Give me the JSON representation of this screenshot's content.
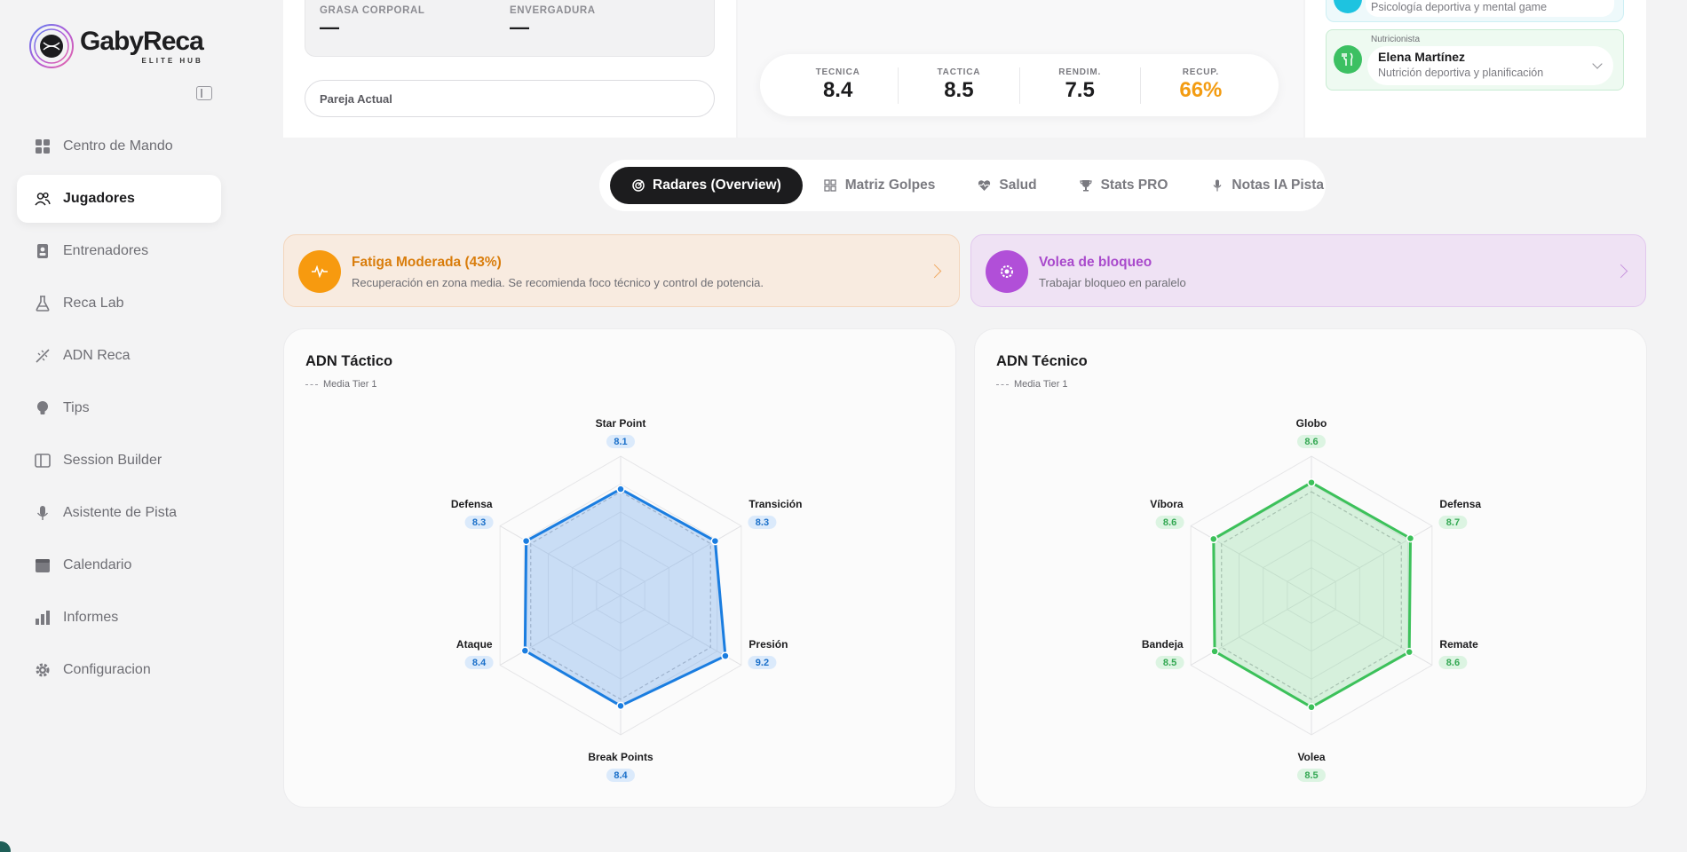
{
  "brand": {
    "name": "GabyReca",
    "tagline": "ELITE HUB"
  },
  "sidebar": {
    "items": [
      {
        "label": "Centro de Mando",
        "icon": "dashboard-icon"
      },
      {
        "label": "Jugadores",
        "icon": "users-icon",
        "active": true
      },
      {
        "label": "Entrenadores",
        "icon": "badge-icon"
      },
      {
        "label": "Reca Lab",
        "icon": "flask-icon"
      },
      {
        "label": "ADN Reca",
        "icon": "dna-icon"
      },
      {
        "label": "Tips",
        "icon": "lightbulb-icon"
      },
      {
        "label": "Session Builder",
        "icon": "layout-icon"
      },
      {
        "label": "Asistente de Pista",
        "icon": "microphone-icon"
      },
      {
        "label": "Calendario",
        "icon": "calendar-icon"
      },
      {
        "label": "Informes",
        "icon": "bar-chart-icon"
      },
      {
        "label": "Configuracion",
        "icon": "gear-icon"
      }
    ]
  },
  "body_stats": [
    {
      "label": "GRASA CORPORAL",
      "value": "—"
    },
    {
      "label": "ENVERGADURA",
      "value": "—"
    }
  ],
  "pair_field": {
    "label": "Pareja Actual"
  },
  "scores": [
    {
      "label": "TECNICA",
      "value": "8.4"
    },
    {
      "label": "TACTICA",
      "value": "8.5"
    },
    {
      "label": "RENDIM.",
      "value": "7.5"
    },
    {
      "label": "RECUP.",
      "value": "66%",
      "highlight": "#f39c12"
    }
  ],
  "staff": {
    "top_card_desc": "Psicología deportiva y mental game",
    "nutritionist": {
      "role": "Nutricionista",
      "name": "Elena Martínez",
      "desc": "Nutrición deportiva y planificación"
    }
  },
  "tabs": [
    {
      "label": "Radares (Overview)",
      "icon": "radar-icon",
      "active": true
    },
    {
      "label": "Matriz Golpes",
      "icon": "grid-icon"
    },
    {
      "label": "Salud",
      "icon": "heart-pulse-icon"
    },
    {
      "label": "Stats PRO",
      "icon": "trophy-icon"
    },
    {
      "label": "Notas IA Pista",
      "icon": "microphone-icon"
    }
  ],
  "alerts": {
    "fatigue": {
      "title": "Fatiga Moderada (43%)",
      "text": "Recuperación en zona media. Se recomienda foco técnico y control de potencia.",
      "color": "#f79a0f"
    },
    "focus": {
      "title": "Volea de bloqueo",
      "text": "Trabajar bloqueo en paralelo",
      "color": "#b14fd8"
    }
  },
  "radars": {
    "tactical": {
      "title": "ADN Táctico",
      "legend": "Media Tier 1",
      "color": "#1a7de0",
      "fill": "rgba(110,165,235,0.35)",
      "badge_bg": "#dbeafb",
      "badge_fg": "#1a6fc9"
    },
    "technical": {
      "title": "ADN Técnico",
      "legend": "Media Tier 1",
      "color": "#3cc15a",
      "fill": "rgba(130,215,150,0.30)",
      "badge_bg": "#dcf4e2",
      "badge_fg": "#34a853"
    }
  },
  "chart_data": [
    {
      "type": "radar",
      "title": "ADN Táctico",
      "categories": [
        "Star Point",
        "Transición",
        "Presión",
        "Break Points",
        "Ataque",
        "Defensa"
      ],
      "series": [
        {
          "name": "",
          "values": [
            8.1,
            8.3,
            9.2,
            8.4,
            8.4,
            8.3
          ]
        },
        {
          "name": "Media Tier 1",
          "values": [
            7.9,
            7.9,
            7.9,
            7.9,
            7.9,
            7.9
          ]
        }
      ],
      "range": [
        0,
        10
      ]
    },
    {
      "type": "radar",
      "title": "ADN Técnico",
      "categories": [
        "Globo",
        "Defensa",
        "Remate",
        "Volea",
        "Bandeja",
        "Víbora"
      ],
      "series": [
        {
          "name": "",
          "values": [
            8.6,
            8.7,
            8.6,
            8.5,
            8.5,
            8.6
          ]
        },
        {
          "name": "Media Tier 1",
          "values": [
            7.9,
            7.9,
            7.9,
            7.9,
            7.9,
            7.9
          ]
        }
      ],
      "range": [
        0,
        10
      ]
    }
  ]
}
